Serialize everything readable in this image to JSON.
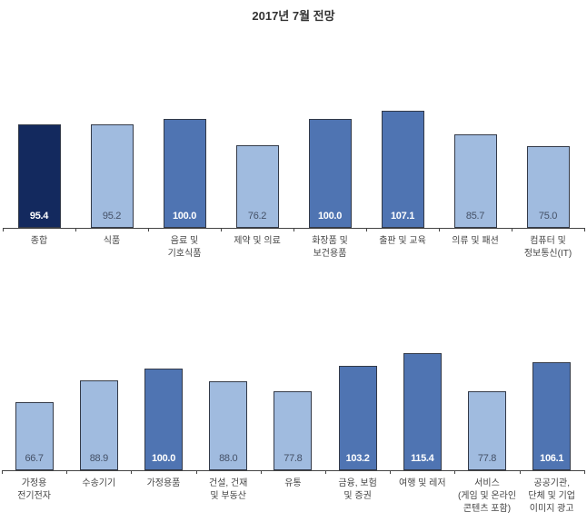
{
  "title": "2017년 7월 전망",
  "colors": {
    "dark": "#13295e",
    "medium": "#4f74b2",
    "light": "#a0bbdf",
    "text_light": "#ffffff",
    "text_dark": "#445066"
  },
  "chart_data": [
    {
      "type": "bar",
      "title": "2017년 7월 전망",
      "categories": [
        "종합",
        "식품",
        "음료 및 기호식품",
        "제약 및 의료",
        "화장품 및 보건용품",
        "출판 및 교육",
        "의류 및 패션",
        "컴퓨터 및 정보통신(IT)"
      ],
      "values": [
        95.4,
        95.2,
        100.0,
        76.2,
        100.0,
        107.1,
        85.7,
        75.0
      ],
      "value_labels": [
        "95.4",
        "95.2",
        "100.0",
        "76.2",
        "100.0",
        "107.1",
        "85.7",
        "75.0"
      ],
      "xlabel": "",
      "ylabel": "",
      "grid": false,
      "legend": false
    },
    {
      "type": "bar",
      "categories": [
        "가정용 전기전자",
        "수송기기",
        "가정용품",
        "건설, 건재 및 부동산",
        "유통",
        "금융, 보험 및 증권",
        "여행 및 레저",
        "서비스 (게임 및 온라인 콘텐츠 포함)",
        "공공기관, 단체 및 기업 이미지 광고"
      ],
      "values": [
        66.7,
        88.9,
        100.0,
        88.0,
        77.8,
        103.2,
        115.4,
        77.8,
        106.1
      ],
      "value_labels": [
        "66.7",
        "88.9",
        "100.0",
        "88.0",
        "77.8",
        "103.2",
        "115.4",
        "77.8",
        "106.1"
      ],
      "xlabel": "",
      "ylabel": "",
      "grid": false,
      "legend": false
    }
  ],
  "top": {
    "bars": [
      {
        "label": "종합",
        "value": "95.4",
        "v": 95.4,
        "tone": "dark"
      },
      {
        "label": "식품",
        "value": "95.2",
        "v": 95.2,
        "tone": "light"
      },
      {
        "label": "음료 및\n기호식품",
        "value": "100.0",
        "v": 100.0,
        "tone": "medium"
      },
      {
        "label": "제약 및 의료",
        "value": "76.2",
        "v": 76.2,
        "tone": "light"
      },
      {
        "label": "화장품 및\n보건용품",
        "value": "100.0",
        "v": 100.0,
        "tone": "medium"
      },
      {
        "label": "출판 및 교육",
        "value": "107.1",
        "v": 107.1,
        "tone": "medium"
      },
      {
        "label": "의류 및 패션",
        "value": "85.7",
        "v": 85.7,
        "tone": "light"
      },
      {
        "label": "컴퓨터 및\n정보통신(IT)",
        "value": "75.0",
        "v": 75.0,
        "tone": "light"
      }
    ]
  },
  "bottom": {
    "bars": [
      {
        "label": "가정용\n전기전자",
        "value": "66.7",
        "v": 66.7,
        "tone": "light"
      },
      {
        "label": "수송기기",
        "value": "88.9",
        "v": 88.9,
        "tone": "light"
      },
      {
        "label": "가정용품",
        "value": "100.0",
        "v": 100.0,
        "tone": "medium"
      },
      {
        "label": "건설, 건재\n및 부동산",
        "value": "88.0",
        "v": 88.0,
        "tone": "light"
      },
      {
        "label": "유통",
        "value": "77.8",
        "v": 77.8,
        "tone": "light"
      },
      {
        "label": "금융, 보험\n및 증권",
        "value": "103.2",
        "v": 103.2,
        "tone": "medium"
      },
      {
        "label": "여행 및 레저",
        "value": "115.4",
        "v": 115.4,
        "tone": "medium"
      },
      {
        "label": "서비스\n(게임 및 온라인\n콘텐츠 포함)",
        "value": "77.8",
        "v": 77.8,
        "tone": "light"
      },
      {
        "label": "공공기관,\n단체 및 기업\n이미지 광고",
        "value": "106.1",
        "v": 106.1,
        "tone": "medium"
      }
    ]
  }
}
